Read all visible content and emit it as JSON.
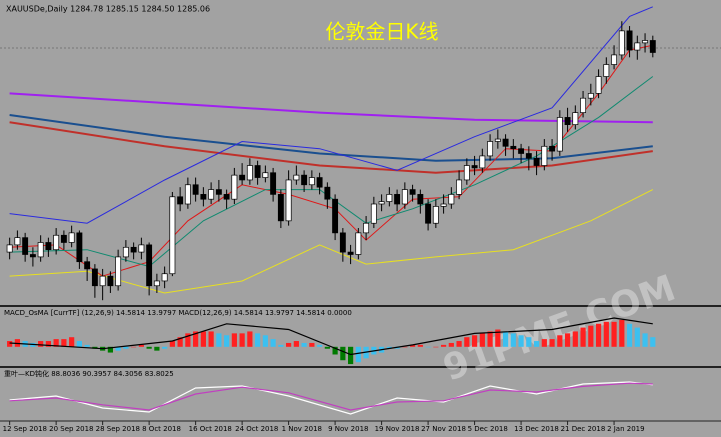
{
  "chart_data": [
    {
      "type": "candlestick",
      "title": "伦敦金日K线",
      "subtitle": "XAUUSDe,Daily  1284.78 1285.15 1284.50 1285.06",
      "watermark": "91PME.COM",
      "xlim": [
        -0.6,
        91.8
      ],
      "ylim": [
        1180,
        1306
      ],
      "xticks": [
        {
          "value": 0,
          "label": "12 Sep 2018"
        },
        {
          "value": 6,
          "label": "20 Sep 2018"
        },
        {
          "value": 12,
          "label": "28 Sep 2018"
        },
        {
          "value": 18,
          "label": "8 Oct 2018"
        },
        {
          "value": 24,
          "label": "16 Oct 2018"
        },
        {
          "value": 30,
          "label": "24 Oct 2018"
        },
        {
          "value": 36,
          "label": "1 Nov 2018"
        },
        {
          "value": 42,
          "label": "9 Nov 2018"
        },
        {
          "value": 48,
          "label": "19 Nov 2018"
        },
        {
          "value": 54,
          "label": "27 Nov 2018"
        },
        {
          "value": 60,
          "label": "5 Dec 2018"
        },
        {
          "value": 66,
          "label": "13 Dec 2018"
        },
        {
          "value": 72,
          "label": "21 Dec 2018"
        },
        {
          "value": 78,
          "label": "2 Jan 2019"
        }
      ],
      "up_color": "#ffffff",
      "down_color": "#000000",
      "outline_color": "#000000",
      "open": [
        1202,
        1205,
        1208,
        1201,
        1200,
        1206,
        1203,
        1209,
        1206,
        1210,
        1198,
        1195,
        1188,
        1192,
        1188,
        1200,
        1204,
        1202,
        1205,
        1188,
        1190,
        1193,
        1225,
        1222,
        1230,
        1226,
        1224,
        1228,
        1226,
        1224,
        1234,
        1232,
        1238,
        1233,
        1235,
        1226,
        1215,
        1232,
        1234,
        1230,
        1233,
        1229,
        1224,
        1210,
        1202,
        1201,
        1210,
        1214,
        1222,
        1223,
        1226,
        1222,
        1228,
        1226,
        1222,
        1214,
        1221,
        1222,
        1226,
        1232,
        1238,
        1237,
        1242,
        1248,
        1249,
        1246,
        1245,
        1243,
        1241,
        1238,
        1246,
        1244,
        1258,
        1255,
        1260,
        1266,
        1268,
        1275,
        1280,
        1284,
        1294,
        1286,
        1289,
        1290
      ],
      "high": [
        1208,
        1211,
        1210,
        1204,
        1209,
        1208,
        1212,
        1211,
        1213,
        1211,
        1200,
        1197,
        1195,
        1194,
        1203,
        1207,
        1206,
        1208,
        1206,
        1193,
        1196,
        1227,
        1229,
        1233,
        1233,
        1229,
        1231,
        1232,
        1228,
        1237,
        1239,
        1241,
        1240,
        1238,
        1237,
        1228,
        1236,
        1238,
        1236,
        1236,
        1235,
        1231,
        1226,
        1212,
        1205,
        1212,
        1217,
        1225,
        1226,
        1229,
        1228,
        1231,
        1230,
        1228,
        1224,
        1224,
        1226,
        1229,
        1236,
        1241,
        1242,
        1245,
        1251,
        1253,
        1251,
        1249,
        1247,
        1246,
        1244,
        1249,
        1249,
        1261,
        1262,
        1263,
        1269,
        1272,
        1278,
        1283,
        1288,
        1298,
        1296,
        1292,
        1293,
        1292
      ],
      "low": [
        1199,
        1203,
        1198,
        1196,
        1198,
        1200,
        1201,
        1203,
        1204,
        1195,
        1190,
        1183,
        1182,
        1185,
        1186,
        1198,
        1199,
        1199,
        1184,
        1185,
        1187,
        1192,
        1219,
        1220,
        1223,
        1221,
        1222,
        1223,
        1220,
        1222,
        1230,
        1230,
        1230,
        1231,
        1223,
        1212,
        1213,
        1230,
        1227,
        1228,
        1226,
        1220,
        1207,
        1198,
        1197,
        1199,
        1207,
        1212,
        1219,
        1221,
        1219,
        1220,
        1223,
        1218,
        1211,
        1212,
        1218,
        1220,
        1224,
        1230,
        1234,
        1235,
        1240,
        1245,
        1242,
        1241,
        1239,
        1236,
        1234,
        1236,
        1240,
        1242,
        1252,
        1253,
        1258,
        1263,
        1266,
        1272,
        1278,
        1282,
        1283,
        1282,
        1285,
        1283
      ],
      "close": [
        1205,
        1208,
        1201,
        1200,
        1206,
        1203,
        1209,
        1206,
        1210,
        1198,
        1195,
        1188,
        1192,
        1188,
        1200,
        1204,
        1202,
        1205,
        1188,
        1190,
        1193,
        1225,
        1222,
        1230,
        1226,
        1224,
        1228,
        1226,
        1224,
        1234,
        1232,
        1238,
        1233,
        1235,
        1226,
        1215,
        1232,
        1234,
        1230,
        1233,
        1229,
        1224,
        1210,
        1202,
        1201,
        1210,
        1214,
        1222,
        1223,
        1226,
        1222,
        1228,
        1226,
        1222,
        1214,
        1221,
        1222,
        1226,
        1232,
        1238,
        1237,
        1242,
        1248,
        1249,
        1246,
        1245,
        1243,
        1241,
        1238,
        1246,
        1244,
        1258,
        1255,
        1260,
        1266,
        1268,
        1275,
        1280,
        1284,
        1294,
        1286,
        1289,
        1290,
        1285
      ],
      "series": [
        {
          "color": "#a020f0",
          "width": 2,
          "x": [
            0,
            20,
            40,
            60,
            83
          ],
          "values": [
            1268,
            1264,
            1260,
            1257,
            1256
          ]
        },
        {
          "color": "#1a4f8f",
          "width": 2,
          "x": [
            0,
            20,
            40,
            55,
            70,
            83
          ],
          "values": [
            1259,
            1250,
            1243,
            1240,
            1241,
            1246
          ]
        },
        {
          "color": "#c0302a",
          "width": 2,
          "x": [
            0,
            20,
            40,
            55,
            70,
            83
          ],
          "values": [
            1256,
            1246,
            1238,
            1235,
            1238,
            1244
          ]
        },
        {
          "color": "#2a2adf",
          "width": 1,
          "x": [
            0,
            10,
            20,
            30,
            40,
            50,
            60,
            70,
            80,
            83
          ],
          "values": [
            1218,
            1214,
            1232,
            1248,
            1245,
            1236,
            1250,
            1262,
            1300,
            1304
          ]
        },
        {
          "color": "#e8e020",
          "width": 1,
          "x": [
            0,
            10,
            20,
            30,
            40,
            46,
            55,
            65,
            75,
            83
          ],
          "values": [
            1192,
            1194,
            1185,
            1190,
            1205,
            1197,
            1200,
            1203,
            1215,
            1228
          ]
        },
        {
          "color": "#e01818",
          "width": 1,
          "x": [
            0,
            6,
            12,
            18,
            23,
            30,
            36,
            42,
            46,
            52,
            58,
            64,
            70,
            76,
            80,
            83
          ],
          "values": [
            1204,
            1205,
            1192,
            1198,
            1215,
            1230,
            1226,
            1220,
            1207,
            1224,
            1225,
            1245,
            1244,
            1268,
            1286,
            1288
          ]
        },
        {
          "color": "#108a70",
          "width": 1,
          "x": [
            0,
            10,
            18,
            25,
            33,
            40,
            46,
            52,
            60,
            68,
            76,
            83
          ],
          "values": [
            1202,
            1203,
            1196,
            1215,
            1228,
            1228,
            1214,
            1220,
            1230,
            1242,
            1258,
            1275
          ]
        }
      ]
    },
    {
      "type": "histogram-macd",
      "title": "MACD_OsMA [CurrTF] (12,26,9) 14.5814 13.9797  MACD(12,26,9) 14.5814 13.9797 14.5814 0.0000",
      "xlim": [
        -0.6,
        91.8
      ],
      "ylim": [
        -10,
        15
      ],
      "bar_colors": [
        "#ff2020",
        "#3cc0f0",
        "#007a00",
        "#3cc0f0"
      ],
      "values": [
        3,
        4,
        3,
        2,
        3,
        3,
        4,
        4,
        5,
        3,
        1,
        -1,
        -2,
        -3,
        -2,
        -1,
        0,
        1,
        -1,
        -2,
        -1,
        3,
        5,
        7,
        8,
        8,
        8,
        7,
        6,
        7,
        7,
        8,
        7,
        6,
        4,
        1,
        2,
        3,
        2,
        2,
        1,
        -1,
        -4,
        -7,
        -9,
        -8,
        -6,
        -4,
        -3,
        -1,
        -1,
        0,
        1,
        1,
        0,
        0,
        1,
        2,
        3,
        5,
        6,
        7,
        8,
        9,
        8,
        7,
        6,
        5,
        3,
        4,
        4,
        6,
        7,
        8,
        10,
        11,
        12,
        13,
        13,
        14,
        12,
        10,
        7,
        5
      ],
      "series": [
        {
          "color": "#000000",
          "x": [
            0,
            12,
            21,
            28,
            36,
            44,
            52,
            60,
            70,
            78,
            83
          ],
          "values": [
            2,
            -1,
            3,
            12,
            9,
            -4,
            1,
            7,
            9,
            15,
            12
          ]
        }
      ]
    },
    {
      "type": "line",
      "title": "重叶—KD钝化 88.8036 90.3957 84.3056 83.8025",
      "xlim": [
        -0.6,
        91.8
      ],
      "ylim": [
        0,
        100
      ],
      "series": [
        {
          "color": "#ffffff",
          "x": [
            0,
            6,
            12,
            18,
            24,
            30,
            36,
            44,
            50,
            56,
            62,
            68,
            74,
            80,
            83
          ],
          "values": [
            50,
            60,
            30,
            20,
            80,
            85,
            60,
            15,
            55,
            45,
            85,
            65,
            90,
            95,
            88
          ]
        },
        {
          "color": "#c040c0",
          "x": [
            0,
            6,
            12,
            18,
            24,
            30,
            36,
            44,
            50,
            56,
            62,
            68,
            74,
            80,
            83
          ],
          "values": [
            48,
            55,
            38,
            25,
            65,
            82,
            68,
            25,
            45,
            48,
            75,
            70,
            84,
            92,
            90
          ]
        }
      ]
    }
  ]
}
